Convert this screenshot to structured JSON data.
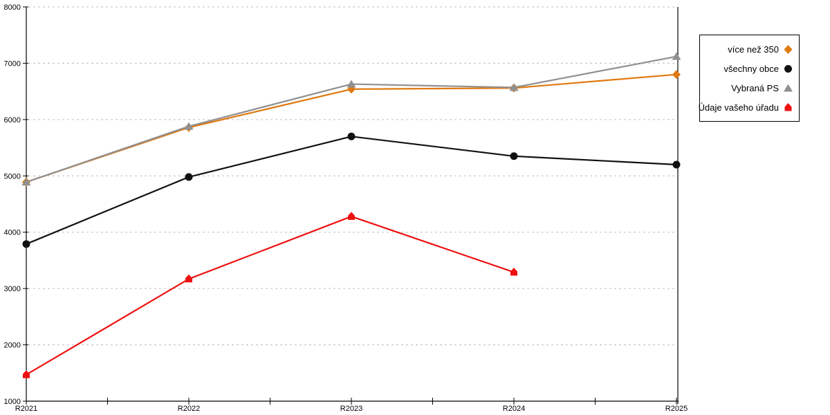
{
  "chart_data": {
    "type": "line",
    "title": "",
    "xlabel": "",
    "ylabel": "",
    "categories": [
      "R2021",
      "R2022",
      "R2023",
      "R2024",
      "R2025"
    ],
    "series": [
      {
        "name": "více než 350",
        "marker": "diamond",
        "color": "#E0790F",
        "values": [
          4890,
          5860,
          6540,
          6560,
          6800
        ]
      },
      {
        "name": "všechny obce",
        "marker": "circle",
        "color": "#111111",
        "values": [
          3790,
          4980,
          5700,
          5350,
          5200
        ]
      },
      {
        "name": "Vybraná PS",
        "marker": "triangle",
        "color": "#909090",
        "values": [
          4890,
          5880,
          6630,
          6570,
          7120
        ]
      },
      {
        "name": "Údaje vašeho úřadu",
        "marker": "house",
        "color": "#EE1111",
        "values": [
          1470,
          3170,
          4280,
          3290,
          null
        ]
      }
    ],
    "ylim": [
      1000,
      8000
    ],
    "ytick_step": 1000,
    "yticks": [
      1000,
      2000,
      3000,
      4000,
      5000,
      6000,
      7000,
      8000
    ],
    "grid": "horizontal-dashed",
    "legend_position": "top-right",
    "colors": {
      "grid": "#bdbdbd",
      "axis": "#000000",
      "background": "#ffffff"
    }
  }
}
